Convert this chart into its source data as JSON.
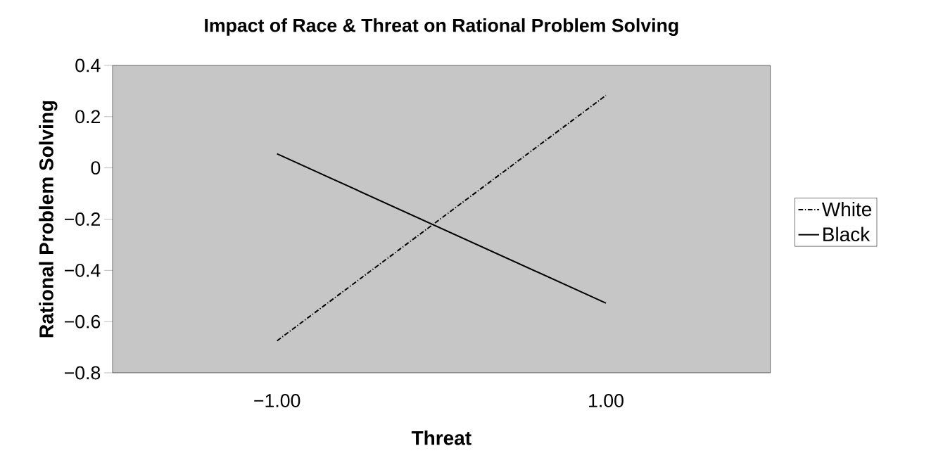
{
  "chart_data": {
    "type": "line",
    "title": "Impact of Race & Threat on Rational Problem Solving",
    "xlabel": "Threat",
    "ylabel": "Rational Problem Solving",
    "categories": [
      "−1.00",
      "1.00"
    ],
    "series": [
      {
        "name": "White",
        "color": "#000000",
        "line_style": "dashdot",
        "values": [
          -0.675,
          0.283
        ]
      },
      {
        "name": "Black",
        "color": "#000000",
        "line_style": "solid",
        "values": [
          0.055,
          -0.528
        ]
      }
    ],
    "ylim": [
      -0.8,
      0.4
    ],
    "yticks": [
      {
        "value": -0.8,
        "label": "−0.8"
      },
      {
        "value": -0.6,
        "label": "−0.6"
      },
      {
        "value": -0.4,
        "label": "−0.4"
      },
      {
        "value": -0.2,
        "label": "−0.2"
      },
      0,
      0.2,
      0.4
    ],
    "grid": false,
    "legend": "right",
    "marker": "none"
  }
}
